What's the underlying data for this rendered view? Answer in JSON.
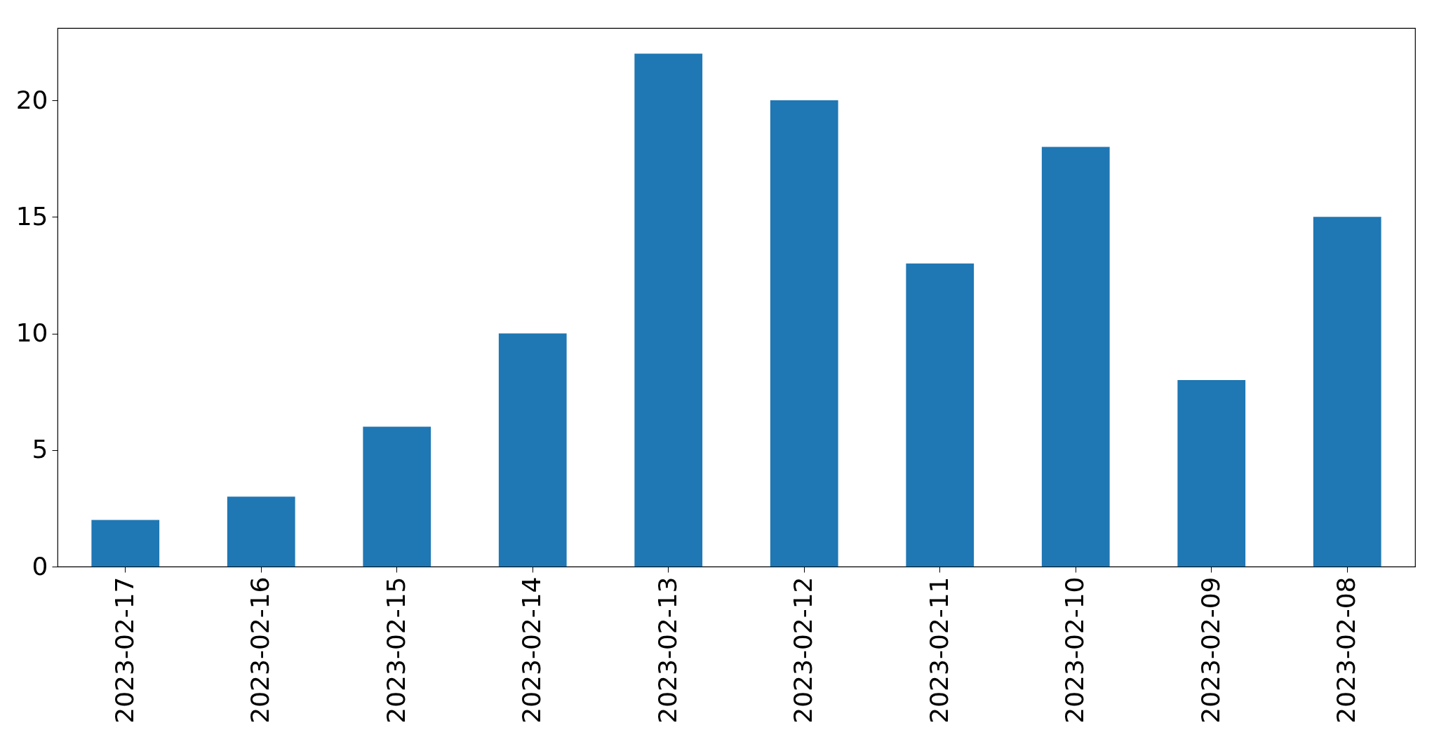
{
  "chart_data": {
    "type": "bar",
    "categories": [
      "2023-02-17",
      "2023-02-16",
      "2023-02-15",
      "2023-02-14",
      "2023-02-13",
      "2023-02-12",
      "2023-02-11",
      "2023-02-10",
      "2023-02-09",
      "2023-02-08"
    ],
    "values": [
      2,
      3,
      6,
      10,
      22,
      20,
      13,
      18,
      8,
      15
    ],
    "color": "#1f77b4",
    "ylim": [
      0,
      23.1
    ],
    "yticks": [
      0,
      5,
      10,
      15,
      20
    ],
    "grid": false
  }
}
